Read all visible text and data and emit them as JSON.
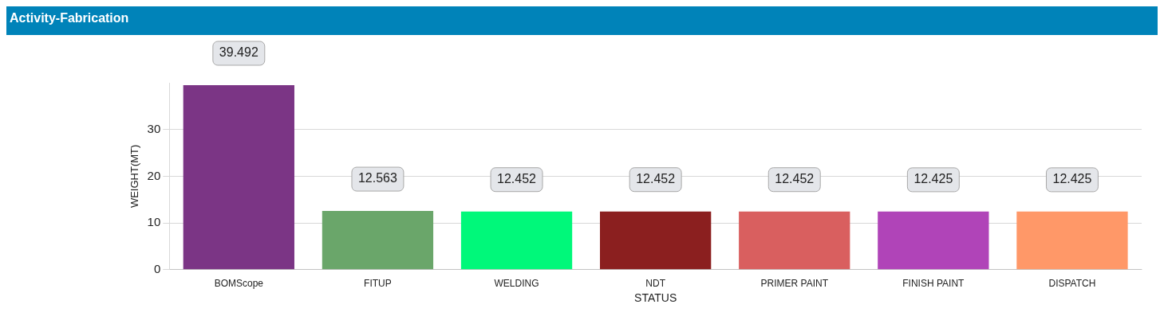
{
  "chart_data": {
    "type": "bar",
    "title": "Activity-Fabrication",
    "xlabel": "STATUS",
    "ylabel": "WEIGHT(MT)",
    "categories": [
      "BOMScope",
      "FITUP",
      "WELDING",
      "NDT",
      "PRIMER PAINT",
      "FINISH PAINT",
      "DISPATCH"
    ],
    "values": [
      39.492,
      12.563,
      12.452,
      12.452,
      12.452,
      12.425,
      12.425
    ],
    "colors": [
      "#7b3585",
      "#6aa66a",
      "#00f87a",
      "#8b1f1f",
      "#d95f5f",
      "#b044b8",
      "#ff9868"
    ],
    "ylim": [
      0,
      40
    ],
    "yticks": [
      0,
      10,
      20,
      30
    ],
    "grid": "y",
    "legend": false,
    "data_labels": true
  }
}
